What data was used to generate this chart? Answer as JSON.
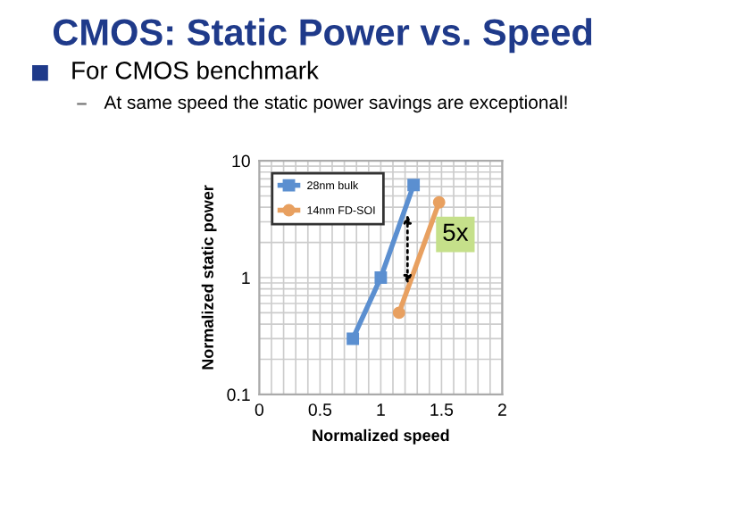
{
  "chart_data": {
    "type": "line",
    "title": "CMOS: Static Power vs. Speed",
    "subtitle": "For CMOS benchmark",
    "xlabel": "Normalized speed",
    "ylabel": "Normalized static power",
    "series": [
      {
        "name": "28nm bulk",
        "color": "#5b8fd0",
        "marker": "square",
        "x": [
          0.77,
          1.0,
          1.27
        ],
        "values": [
          0.3,
          1.0,
          6.2
        ]
      },
      {
        "name": "14nm FD-SOI",
        "color": "#e8a060",
        "marker": "circle",
        "x": [
          1.15,
          1.48
        ],
        "values": [
          0.5,
          4.4
        ]
      }
    ],
    "annotations": [
      "At same speed the static power savings are exceptional!",
      {
        "text": "5x",
        "x": 1.22,
        "y": 0.8
      }
    ],
    "xlim": [
      0,
      2
    ],
    "xticks": [
      0,
      0.5,
      1,
      1.5,
      2
    ],
    "ylim": [
      0.1,
      10
    ],
    "yticks": [
      0.1,
      1,
      10
    ],
    "log": "y",
    "grid": true,
    "legend": "top left"
  }
}
